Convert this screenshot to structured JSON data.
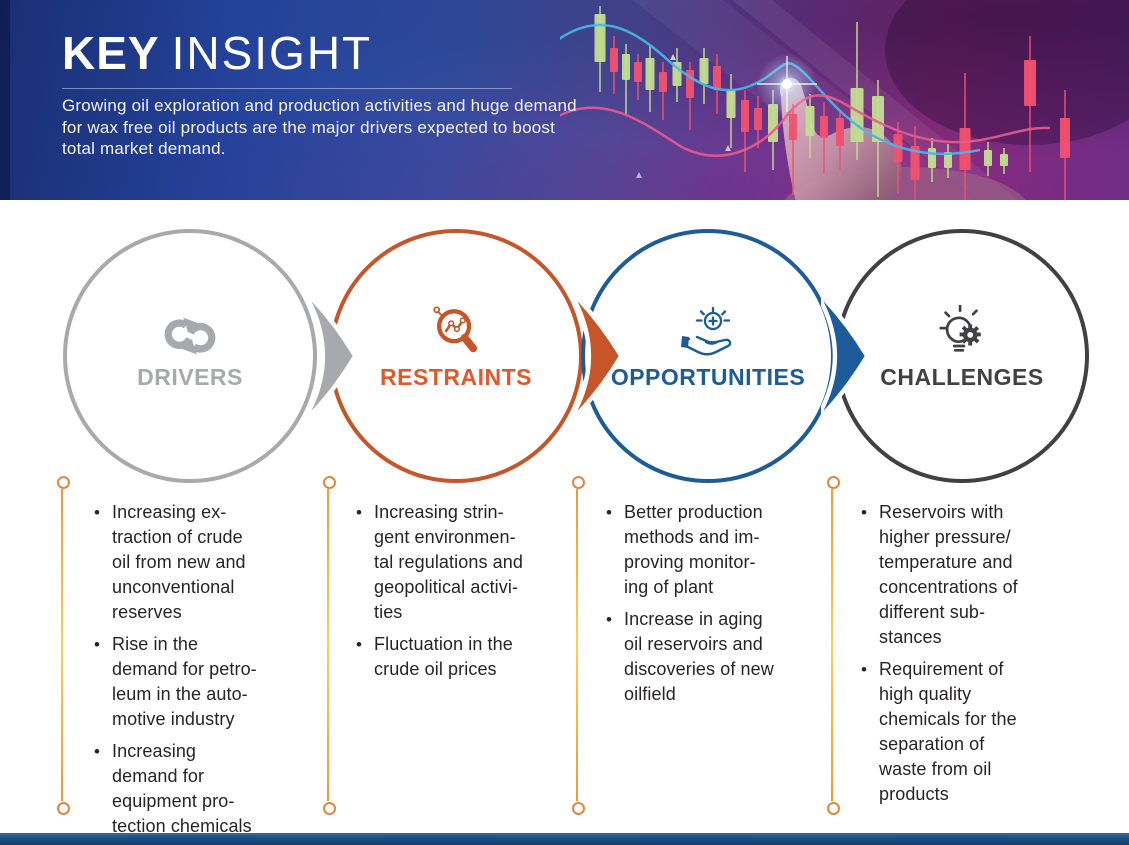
{
  "header": {
    "title_bold": "KEY",
    "title_light": "INSIGHT",
    "subtitle": "Growing oil exploration and production activities  and huge demand\nfor wax free oil products are the major drivers expected to boost\ntotal market demand."
  },
  "categories": [
    {
      "label": "DRIVERS",
      "color": "#a7a9ac",
      "label_color": "#a7a9ac",
      "icon": "sync-arrows-icon",
      "bullets": [
        "Increasing ex-\ntraction of crude\noil from new and\nunconventional\nreserves",
        "Rise in the\ndemand for petro-\nleum in the auto-\nmotive industry",
        "Increasing\ndemand for\nequipment pro-\ntection chemicals"
      ]
    },
    {
      "label": "RESTRAINTS",
      "color": "#c7552a",
      "label_color": "#e0592b",
      "icon": "magnifier-chart-icon",
      "bullets": [
        "Increasing strin-\ngent environmen-\ntal regulations and\ngeopolitical activi-\nties",
        "Fluctuation in the\ncrude oil prices"
      ]
    },
    {
      "label": "OPPORTUNITIES",
      "color": "#1d5c99",
      "label_color": "#1d5c99",
      "icon": "hand-sun-icon",
      "bullets": [
        "Better production\nmethods and im-\nproving monitor-\ning of plant",
        "Increase in aging\noil reservoirs and\ndiscoveries of new\noilfield"
      ]
    },
    {
      "label": "CHALLENGES",
      "color": "#414042",
      "label_color": "#414042",
      "icon": "bulb-gear-icon",
      "bullets": [
        "Reservoirs with\nhigher pressure/\ntemperature and\nconcentrations of\ndifferent sub-\nstances",
        "Requirement of\nhigh quality\nchemicals for the\nseparation of\nwaste from oil\nproducts"
      ]
    }
  ],
  "connector": {
    "line_color": "#f5b03c",
    "ring_color": "#e2873b"
  },
  "footer": {
    "bar_color": "#1c4c82"
  },
  "header_chart": {
    "colors": {
      "up": "#c3dd90",
      "down": "#f2516e",
      "line_blue": "#4ab6e8",
      "line_pink": "#e85a8f"
    },
    "candles": [
      [
        40,
        14,
        48,
        1,
        8,
        30,
        11
      ],
      [
        54,
        48,
        24,
        0,
        12,
        22,
        8
      ],
      [
        66,
        54,
        26,
        1,
        10,
        36,
        8
      ],
      [
        78,
        62,
        20,
        0,
        8,
        18,
        8
      ],
      [
        90,
        58,
        32,
        1,
        12,
        22,
        9
      ],
      [
        103,
        72,
        20,
        0,
        10,
        28,
        8
      ],
      [
        117,
        62,
        24,
        1,
        14,
        16,
        9
      ],
      [
        130,
        70,
        28,
        0,
        8,
        32,
        8
      ],
      [
        144,
        58,
        26,
        1,
        10,
        20,
        9
      ],
      [
        157,
        66,
        24,
        0,
        12,
        24,
        8
      ],
      [
        171,
        90,
        28,
        1,
        16,
        30,
        9
      ],
      [
        185,
        100,
        32,
        0,
        10,
        40,
        8
      ],
      [
        198,
        108,
        22,
        0,
        12,
        18,
        8
      ],
      [
        213,
        104,
        38,
        1,
        14,
        28,
        10
      ],
      [
        233,
        114,
        26,
        0,
        10,
        55,
        8
      ],
      [
        250,
        106,
        30,
        1,
        12,
        22,
        9
      ],
      [
        264,
        116,
        22,
        0,
        14,
        36,
        8
      ],
      [
        280,
        118,
        28,
        0,
        8,
        24,
        8
      ],
      [
        297,
        88,
        54,
        1,
        66,
        18,
        13
      ],
      [
        318,
        96,
        46,
        1,
        16,
        55,
        12
      ],
      [
        338,
        134,
        28,
        0,
        12,
        32,
        9
      ],
      [
        355,
        146,
        34,
        0,
        20,
        26,
        9
      ],
      [
        372,
        148,
        20,
        1,
        10,
        14,
        8
      ],
      [
        388,
        152,
        16,
        1,
        8,
        10,
        8
      ],
      [
        405,
        128,
        42,
        0,
        55,
        36,
        11
      ],
      [
        428,
        150,
        16,
        1,
        8,
        10,
        8
      ],
      [
        444,
        154,
        12,
        1,
        6,
        8,
        8
      ],
      [
        470,
        60,
        46,
        0,
        24,
        66,
        12
      ],
      [
        505,
        118,
        40,
        0,
        28,
        46,
        10
      ]
    ]
  }
}
